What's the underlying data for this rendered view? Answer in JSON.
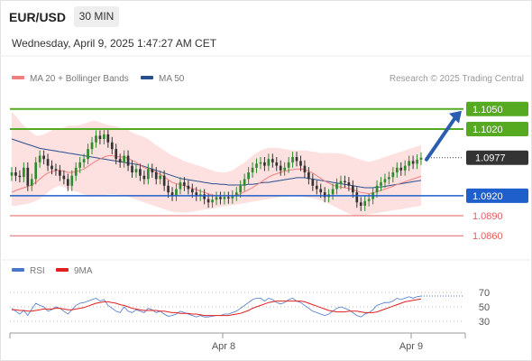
{
  "header": {
    "symbol": "EUR/USD",
    "timeframe": "30 MIN",
    "datetime": "Wednesday, April 9, 2025 1:47:27 AM CET"
  },
  "legend": {
    "ma20_label": "MA 20 + Bollinger Bands",
    "ma20_color": "#f08080",
    "ma50_label": "MA 50",
    "ma50_color": "#2a4f8f",
    "credit": "Research © 2025 Trading Central"
  },
  "rsi_legend": {
    "rsi_label": "RSI",
    "rsi_color": "#4a78c8",
    "ma_label": "9MA",
    "ma_color": "#e02020"
  },
  "colors": {
    "up_candle": "#2e8b2e",
    "down_candle": "#333333",
    "resistance": "#55aa22",
    "support": "#1f5fcc",
    "minor_level": "#e06060",
    "band_fill": "#fde0e0",
    "arrow": "#2a5db0"
  },
  "chart_data": [
    {
      "type": "candlestick",
      "title": "",
      "ylim": [
        1.084,
        1.107
      ],
      "x_ticks": [
        "Apr 8",
        "Apr 9"
      ],
      "levels": [
        {
          "value": 1.105,
          "label": "1.1050",
          "kind": "resistance"
        },
        {
          "value": 1.102,
          "label": "1.1020",
          "kind": "resistance"
        },
        {
          "value": 1.0977,
          "label": "1.0977",
          "kind": "current"
        },
        {
          "value": 1.092,
          "label": "1.0920",
          "kind": "support"
        },
        {
          "value": 1.089,
          "label": "1.0890",
          "kind": "minor"
        },
        {
          "value": 1.086,
          "label": "1.0860",
          "kind": "minor"
        }
      ],
      "arrow": {
        "from_value": 1.0977,
        "to_value": 1.105
      },
      "close": [
        1.0955,
        1.095,
        1.0948,
        1.0962,
        1.0935,
        1.0945,
        1.097,
        1.098,
        1.0975,
        1.0965,
        1.096,
        1.0958,
        1.095,
        1.0945,
        1.0935,
        1.095,
        1.0962,
        1.097,
        1.0975,
        1.099,
        1.1,
        1.101,
        1.1005,
        1.1012,
        1.1,
        1.099,
        1.0975,
        1.097,
        1.098,
        1.0965,
        1.0955,
        1.096,
        1.095,
        1.0945,
        1.096,
        1.0955,
        1.0945,
        1.095,
        1.0935,
        1.0925,
        1.092,
        1.093,
        1.094,
        1.0935,
        1.093,
        1.0925,
        1.092,
        1.0922,
        1.0915,
        1.091,
        1.0914,
        1.0918,
        1.0915,
        1.0918,
        1.0916,
        1.092,
        1.0925,
        1.0935,
        1.0945,
        1.0955,
        1.0962,
        1.0968,
        1.097,
        1.0965,
        1.0975,
        1.097,
        1.0965,
        1.0958,
        1.0962,
        1.097,
        1.0978,
        1.0972,
        1.0965,
        1.0955,
        1.0945,
        1.0935,
        1.093,
        1.0925,
        1.0918,
        1.0922,
        1.093,
        1.0938,
        1.0942,
        1.094,
        1.0935,
        1.0925,
        1.091,
        1.0905,
        1.0912,
        1.0915,
        1.0925,
        1.0935,
        1.094,
        1.0945,
        1.0948,
        1.0955,
        1.0962,
        1.0958,
        1.0965,
        1.0972,
        1.0968,
        1.0974,
        1.0977
      ],
      "ma20": [
        1.0925,
        1.0928,
        1.093,
        1.0932,
        1.0934,
        1.0936,
        1.094,
        1.0945,
        1.095,
        1.0954,
        1.0956,
        1.0958,
        1.0958,
        1.0957,
        1.0955,
        1.0955,
        1.0956,
        1.0958,
        1.096,
        1.0964,
        1.0968,
        1.0972,
        1.0975,
        1.0978,
        1.098,
        1.098,
        1.0979,
        1.0978,
        1.0978,
        1.0976,
        1.0973,
        1.097,
        1.0966,
        1.0962,
        1.096,
        1.0958,
        1.0955,
        1.0952,
        1.0948,
        1.0944,
        1.094,
        1.0938,
        1.0937,
        1.0935,
        1.0933,
        1.0931,
        1.0929,
        1.0927,
        1.0925,
        1.0923,
        1.0921,
        1.092,
        1.092,
        1.092,
        1.092,
        1.092,
        1.0921,
        1.0923,
        1.0926,
        1.0929,
        1.0932,
        1.0936,
        1.094,
        1.0944,
        1.0948,
        1.0951,
        1.0953,
        1.0955,
        1.0957,
        1.0958,
        1.0959,
        1.096,
        1.096,
        1.0959,
        1.0957,
        1.0954,
        1.095,
        1.0946,
        1.0942,
        1.0939,
        1.0936,
        1.0934,
        1.0933,
        1.0932,
        1.0931,
        1.0929,
        1.0927,
        1.0925,
        1.0924,
        1.0923,
        1.0924,
        1.0926,
        1.0928,
        1.093,
        1.0932,
        1.0934,
        1.0937,
        1.0939,
        1.0941,
        1.0943,
        1.0945,
        1.0947,
        1.0949
      ],
      "ma50": [
        1.1005,
        1.1003,
        1.1001,
        1.0999,
        1.0997,
        1.0995,
        1.0993,
        1.0991,
        1.099,
        1.0989,
        1.0988,
        1.0987,
        1.0986,
        1.0985,
        1.0984,
        1.0983,
        1.0982,
        1.0981,
        1.098,
        1.0979,
        1.0978,
        1.0977,
        1.0976,
        1.0975,
        1.0974,
        1.0973,
        1.0972,
        1.0971,
        1.097,
        1.0969,
        1.0968,
        1.0967,
        1.0966,
        1.0964,
        1.0962,
        1.096,
        1.0958,
        1.0956,
        1.0954,
        1.0952,
        1.095,
        1.0948,
        1.0946,
        1.0945,
        1.0944,
        1.0943,
        1.0942,
        1.0941,
        1.094,
        1.0939,
        1.0938,
        1.0938,
        1.0937,
        1.0937,
        1.0936,
        1.0936,
        1.0936,
        1.0936,
        1.0936,
        1.0937,
        1.0937,
        1.0938,
        1.0939,
        1.094,
        1.094,
        1.0941,
        1.0942,
        1.0943,
        1.0944,
        1.0945,
        1.0946,
        1.0947,
        1.0947,
        1.0947,
        1.0946,
        1.0945,
        1.0944,
        1.0943,
        1.0942,
        1.0941,
        1.094,
        1.0939,
        1.0938,
        1.0937,
        1.0936,
        1.0935,
        1.0934,
        1.0933,
        1.0932,
        1.0932,
        1.0932,
        1.0933,
        1.0933,
        1.0934,
        1.0935,
        1.0936,
        1.0937,
        1.0938,
        1.0939,
        1.094,
        1.0941,
        1.0942,
        1.0943
      ],
      "band_upper": [
        1.1045,
        1.104,
        1.1032,
        1.1025,
        1.102,
        1.1015,
        1.101,
        1.101,
        1.1012,
        1.1015,
        1.1018,
        1.102,
        1.102,
        1.1022,
        1.1025,
        1.1025,
        1.1025,
        1.1026,
        1.1028,
        1.103,
        1.1032,
        1.1032,
        1.103,
        1.1028,
        1.1026,
        1.1025,
        1.1024,
        1.1022,
        1.102,
        1.1018,
        1.1015,
        1.1012,
        1.101,
        1.1008,
        1.1005,
        1.1,
        1.0996,
        1.0992,
        1.0988,
        1.0984,
        1.098,
        1.0978,
        1.0975,
        1.0972,
        1.097,
        1.0968,
        1.0966,
        1.0964,
        1.0962,
        1.096,
        1.0958,
        1.0956,
        1.0955,
        1.0955,
        1.0956,
        1.0958,
        1.0962,
        1.0966,
        1.097,
        1.0975,
        1.098,
        1.0984,
        1.0988,
        1.099,
        1.0992,
        1.0992,
        1.0992,
        1.0991,
        1.099,
        1.0989,
        1.0988,
        1.0988,
        1.0988,
        1.0988,
        1.0987,
        1.0986,
        1.0985,
        1.0984,
        1.0984,
        1.0984,
        1.0984,
        1.0984,
        1.0983,
        1.0982,
        1.098,
        1.0978,
        1.0976,
        1.0974,
        1.0972,
        1.0971,
        1.0972,
        1.0974,
        1.0976,
        1.0978,
        1.098,
        1.0982,
        1.0984,
        1.0986,
        1.0988,
        1.099,
        1.0992,
        1.0994,
        1.0996
      ],
      "band_lower": [
        1.0905,
        1.0905,
        1.0906,
        1.0907,
        1.0908,
        1.091,
        1.0912,
        1.0915,
        1.092,
        1.0925,
        1.093,
        1.0933,
        1.0935,
        1.0933,
        1.093,
        1.0928,
        1.0926,
        1.0924,
        1.0922,
        1.0921,
        1.092,
        1.092,
        1.092,
        1.0921,
        1.0922,
        1.0922,
        1.0922,
        1.0921,
        1.092,
        1.0918,
        1.0916,
        1.0914,
        1.0912,
        1.091,
        1.0908,
        1.0906,
        1.0904,
        1.0902,
        1.09,
        1.0898,
        1.0896,
        1.0895,
        1.0895,
        1.0895,
        1.0895,
        1.0896,
        1.0897,
        1.0898,
        1.0899,
        1.09,
        1.0901,
        1.0902,
        1.0903,
        1.0904,
        1.0905,
        1.0906,
        1.0907,
        1.0908,
        1.0909,
        1.091,
        1.0911,
        1.0912,
        1.0913,
        1.0914,
        1.0915,
        1.0916,
        1.0917,
        1.0918,
        1.0919,
        1.092,
        1.092,
        1.092,
        1.0919,
        1.0918,
        1.0917,
        1.0916,
        1.0915,
        1.0913,
        1.0911,
        1.0908,
        1.0905,
        1.0902,
        1.0899,
        1.0896,
        1.0893,
        1.0891,
        1.089,
        1.089,
        1.0891,
        1.0892,
        1.0893,
        1.0894,
        1.0895,
        1.0896,
        1.0897,
        1.0898,
        1.0899,
        1.09,
        1.0901,
        1.0902,
        1.0903,
        1.0904,
        1.0905
      ]
    },
    {
      "type": "line",
      "title": "",
      "ylim": [
        20,
        80
      ],
      "y_ticks": [
        70,
        50,
        30
      ],
      "series": [
        {
          "name": "RSI",
          "values": [
            48,
            44,
            40,
            45,
            38,
            47,
            55,
            52,
            50,
            44,
            46,
            50,
            48,
            44,
            40,
            46,
            52,
            55,
            56,
            58,
            60,
            62,
            58,
            60,
            52,
            48,
            44,
            42,
            50,
            44,
            42,
            46,
            44,
            42,
            48,
            46,
            42,
            44,
            40,
            37,
            38,
            40,
            44,
            42,
            40,
            38,
            36,
            38,
            36,
            36,
            37,
            38,
            38,
            40,
            40,
            42,
            44,
            48,
            52,
            56,
            60,
            62,
            62,
            58,
            62,
            60,
            56,
            54,
            56,
            60,
            62,
            58,
            56,
            52,
            48,
            44,
            42,
            40,
            38,
            40,
            44,
            48,
            50,
            48,
            46,
            42,
            38,
            36,
            40,
            42,
            46,
            52,
            54,
            56,
            56,
            58,
            62,
            60,
            62,
            64,
            62,
            64,
            65
          ]
        },
        {
          "name": "9MA",
          "values": [
            46,
            46,
            45,
            45,
            44,
            44,
            45,
            46,
            47,
            47,
            47,
            48,
            48,
            47,
            46,
            46,
            47,
            48,
            49,
            51,
            53,
            55,
            56,
            57,
            57,
            56,
            55,
            53,
            52,
            50,
            48,
            47,
            46,
            45,
            45,
            45,
            45,
            44,
            44,
            43,
            42,
            42,
            41,
            41,
            41,
            40,
            40,
            39,
            38,
            38,
            38,
            38,
            38,
            38,
            38,
            39,
            40,
            41,
            43,
            45,
            48,
            50,
            52,
            54,
            56,
            57,
            58,
            58,
            58,
            58,
            58,
            58,
            58,
            57,
            55,
            53,
            51,
            49,
            47,
            45,
            44,
            43,
            43,
            43,
            44,
            44,
            44,
            43,
            42,
            42,
            42,
            43,
            45,
            47,
            49,
            51,
            53,
            55,
            57,
            58,
            59,
            60,
            61
          ]
        }
      ]
    }
  ]
}
